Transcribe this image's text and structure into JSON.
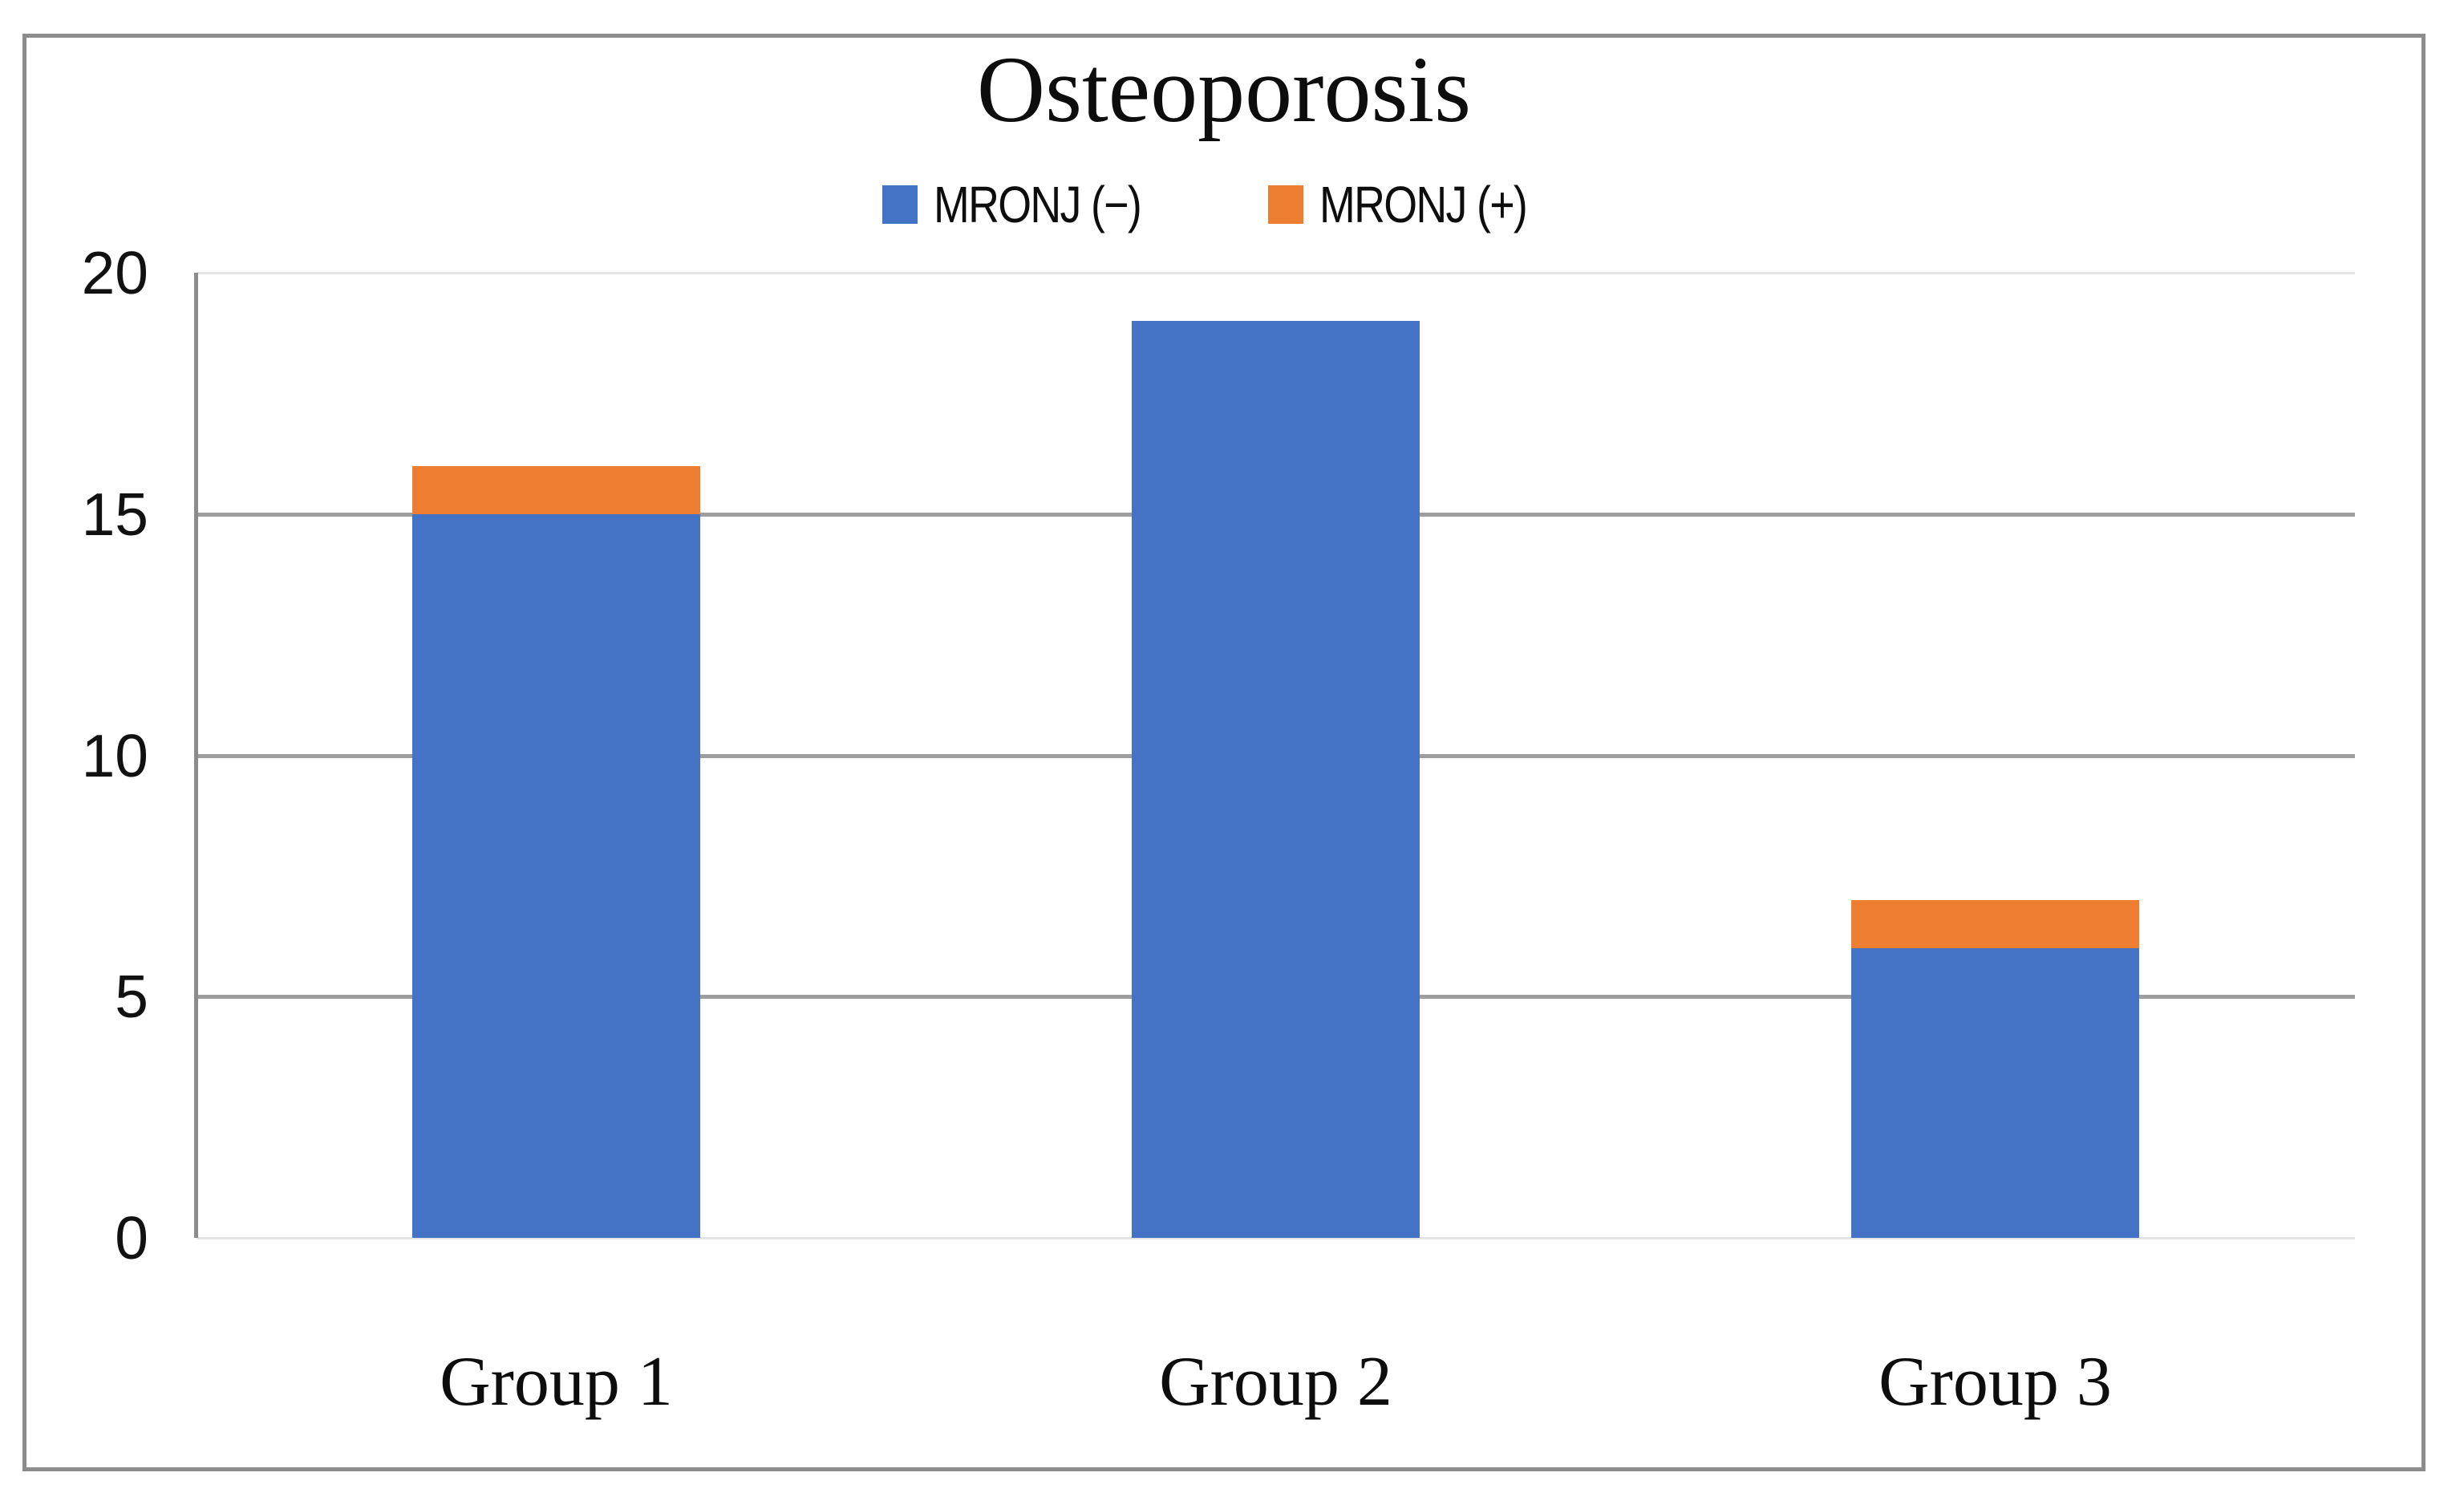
{
  "chart_data": {
    "type": "bar",
    "stacked": true,
    "title": "Osteoporosis",
    "categories": [
      "Group 1",
      "Group 2",
      "Group 3"
    ],
    "series": [
      {
        "name": "MRONJ (−)",
        "color": "#4472c4",
        "values": [
          15,
          19,
          6
        ]
      },
      {
        "name": "MRONJ (+)",
        "color": "#ed7d31",
        "values": [
          1,
          0,
          1
        ]
      }
    ],
    "ylim": [
      0,
      20
    ],
    "yticks": [
      0,
      5,
      10,
      15,
      20
    ],
    "grid": "horizontal",
    "legend_position": "top-center",
    "colors": {
      "grid_major": "#9e9e9e",
      "grid_light": "#e4e4e4",
      "axis_line": "#8c8c8c",
      "figure_border": "#8c8c8c",
      "text": "#0d0d0d"
    }
  }
}
